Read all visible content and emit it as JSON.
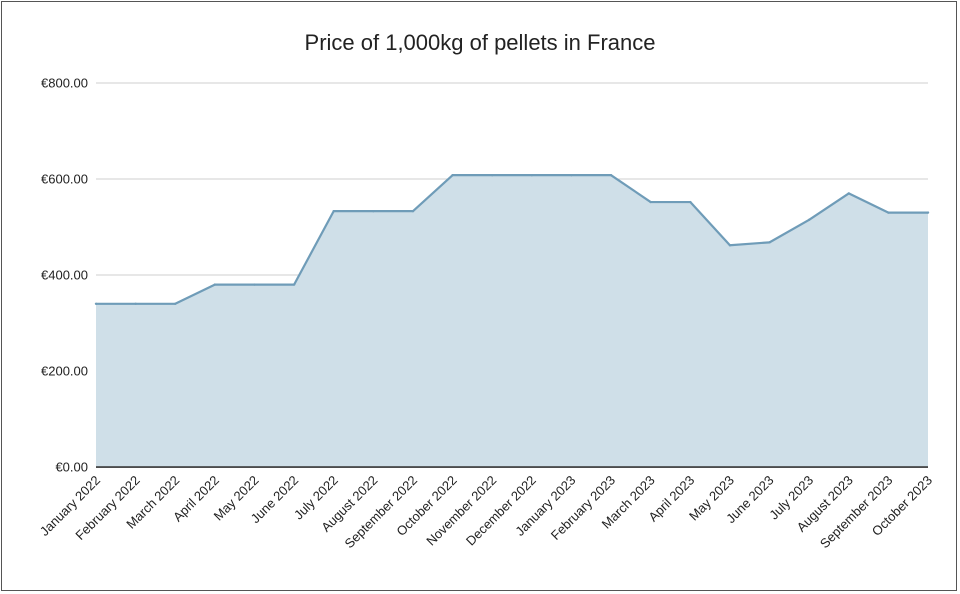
{
  "chart_data": {
    "type": "area",
    "title": "Price of 1,000kg of pellets in France",
    "xlabel": "",
    "ylabel": "",
    "ylim": [
      0,
      800
    ],
    "yticks": [
      "€0.00",
      "€200.00",
      "€400.00",
      "€600.00",
      "€800.00"
    ],
    "ytick_values": [
      0,
      200,
      400,
      600,
      800
    ],
    "grid": true,
    "legend": "none",
    "categories": [
      "January 2022",
      "February 2022",
      "March 2022",
      "April 2022",
      "May 2022",
      "June 2022",
      "July 2022",
      "August 2022",
      "September 2022",
      "October 2022",
      "November 2022",
      "December 2022",
      "January 2023",
      "February 2023",
      "March 2023",
      "April 2023",
      "May 2023",
      "June 2023",
      "July 2023",
      "August 2023",
      "September 2023",
      "October 2023"
    ],
    "values": [
      340,
      340,
      340,
      380,
      380,
      380,
      533,
      533,
      533,
      608,
      608,
      608,
      608,
      608,
      552,
      552,
      462,
      468,
      515,
      570,
      530,
      530
    ],
    "colors": {
      "line": "#6f9cb8",
      "fill": "#cfdfe8"
    }
  }
}
